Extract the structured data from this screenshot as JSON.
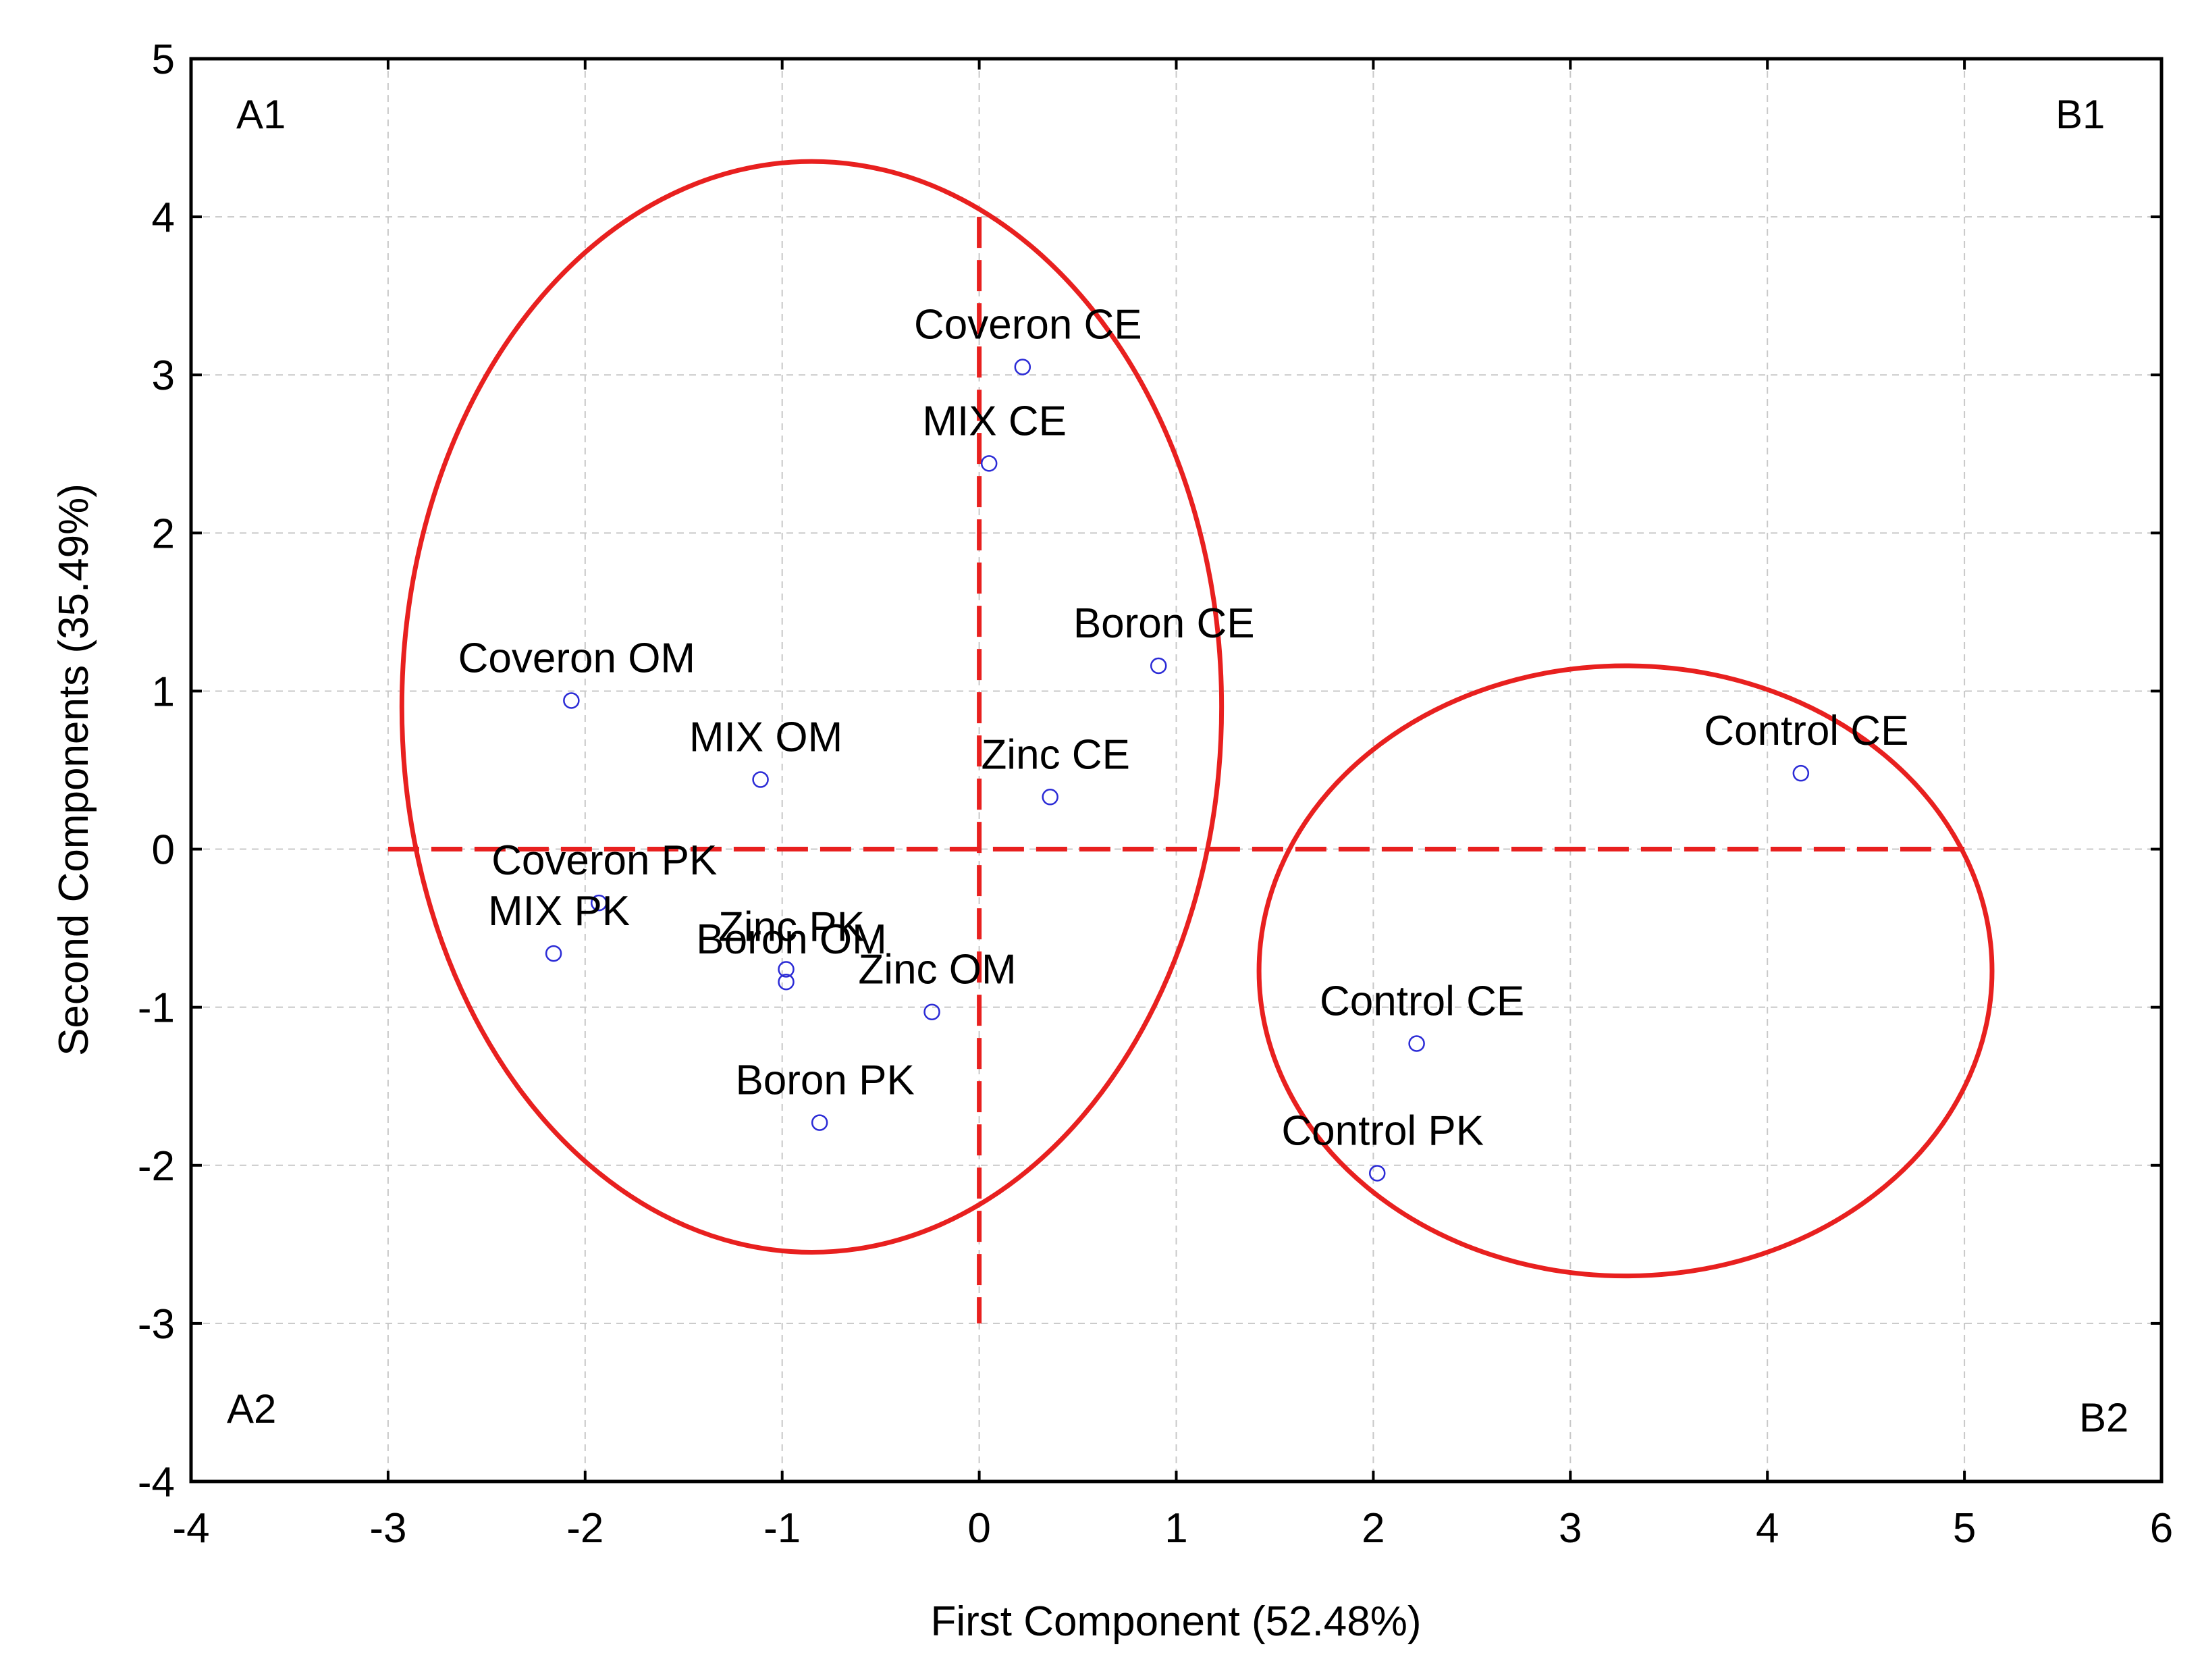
{
  "chart_data": {
    "type": "scatter",
    "title": "",
    "xlabel": "First Component (52.48%)",
    "ylabel": "Second Components (35.49%)",
    "xlim": [
      -4,
      6
    ],
    "ylim": [
      -4,
      5
    ],
    "grid": true,
    "x_ticks": [
      "-4",
      "-3",
      "-2",
      "-1",
      "0",
      "1",
      "2",
      "3",
      "4",
      "5",
      "6"
    ],
    "x_tick_values": [
      -4,
      -3,
      -2,
      -1,
      0,
      1,
      2,
      3,
      4,
      5,
      6
    ],
    "y_ticks": [
      "-4",
      "-3",
      "-2",
      "-1",
      "0",
      "1",
      "2",
      "3",
      "4",
      "5"
    ],
    "y_tick_values": [
      -4,
      -3,
      -2,
      -1,
      0,
      1,
      2,
      3,
      4,
      5
    ],
    "quadrant_labels": [
      "A1",
      "B1",
      "A2",
      "B2"
    ],
    "points": [
      {
        "label": "Coveron CE",
        "x": 0.22,
        "y": 3.05
      },
      {
        "label": "MIX CE",
        "x": 0.05,
        "y": 2.44
      },
      {
        "label": "Boron CE",
        "x": 0.91,
        "y": 1.16
      },
      {
        "label": "Coveron OM",
        "x": -2.07,
        "y": 0.94
      },
      {
        "label": "MIX OM",
        "x": -1.11,
        "y": 0.44
      },
      {
        "label": "Zinc CE",
        "x": 0.36,
        "y": 0.33
      },
      {
        "label": "Control CE",
        "x": 4.17,
        "y": 0.48
      },
      {
        "label": "Coveron PK",
        "x": -1.93,
        "y": -0.34
      },
      {
        "label": "MIX PK",
        "x": -2.16,
        "y": -0.66
      },
      {
        "label": "Zinc PK",
        "x": -0.98,
        "y": -0.76
      },
      {
        "label": "Boron OM",
        "x": -0.98,
        "y": -0.84
      },
      {
        "label": "Zinc OM",
        "x": -0.24,
        "y": -1.03
      },
      {
        "label": "Control CE",
        "x": 2.22,
        "y": -1.23
      },
      {
        "label": "Boron PK",
        "x": -0.81,
        "y": -1.73
      },
      {
        "label": "Control PK",
        "x": 2.02,
        "y": -2.05
      }
    ],
    "ellipses": [
      {
        "name": "group-a",
        "cx": -0.85,
        "cy": 0.9,
        "rx": 2.08,
        "ry": 3.45
      },
      {
        "name": "group-b",
        "cx": 3.28,
        "cy": -0.77,
        "rx": 1.86,
        "ry": 1.93
      }
    ],
    "reference_lines": [
      {
        "name": "horizontal-guide",
        "from": [
          -3.0,
          0.0
        ],
        "to": [
          5.0,
          0.0
        ]
      },
      {
        "name": "vertical-guide",
        "from": [
          0.0,
          4.0
        ],
        "to": [
          0.0,
          -3.0
        ]
      }
    ]
  },
  "colors": {
    "point": "#2b2bd6",
    "ellipse": "#e8201f",
    "guide": "#e8201f"
  }
}
